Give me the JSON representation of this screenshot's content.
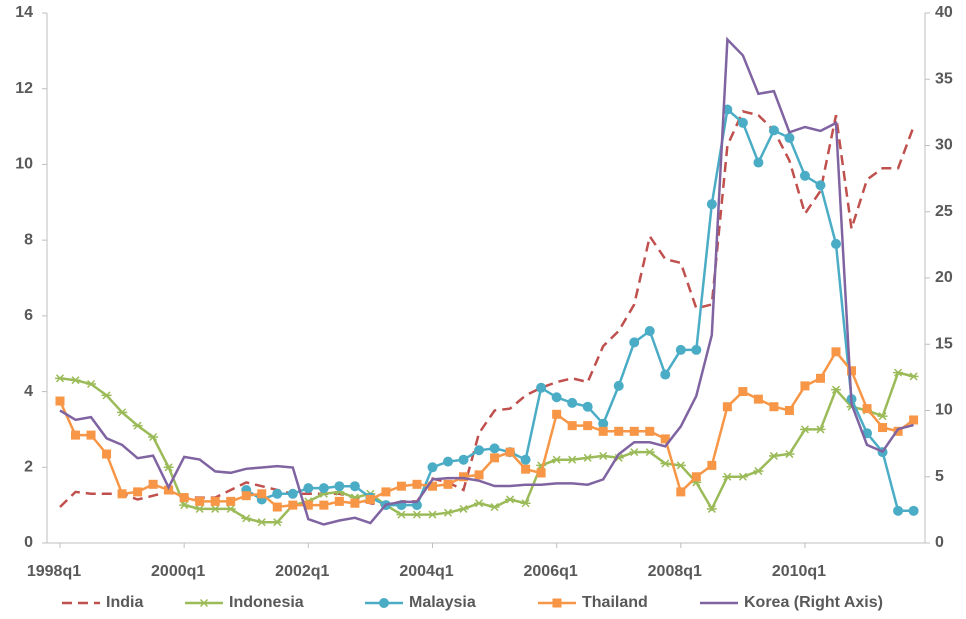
{
  "chart_data": {
    "type": "line",
    "categories": [
      "1998q1",
      null,
      null,
      null,
      null,
      null,
      null,
      null,
      "2000q1",
      null,
      null,
      null,
      null,
      null,
      null,
      null,
      "2002q1",
      null,
      null,
      null,
      null,
      null,
      null,
      null,
      "2004q1",
      null,
      null,
      null,
      null,
      null,
      null,
      null,
      "2006q1",
      null,
      null,
      null,
      null,
      null,
      null,
      null,
      "2008q1",
      null,
      null,
      null,
      null,
      null,
      null,
      null,
      "2010q1",
      null,
      null,
      null,
      null,
      null,
      null,
      null
    ],
    "series": [
      {
        "name": "India",
        "color": "#c0504d",
        "line_style": "dashed",
        "marker": "none",
        "values": [
          0.95,
          1.35,
          1.3,
          1.3,
          1.3,
          1.15,
          1.25,
          1.35,
          1.2,
          1.2,
          1.2,
          1.4,
          1.6,
          1.5,
          1.4,
          1.3,
          1.3,
          1.3,
          1.3,
          1.2,
          1.05,
          1.0,
          1.1,
          1.1,
          1.7,
          1.6,
          1.4,
          2.9,
          3.5,
          3.55,
          3.9,
          4.1,
          4.25,
          4.35,
          4.25,
          5.2,
          5.6,
          6.3,
          8.1,
          7.5,
          7.4,
          6.2,
          6.3,
          10.5,
          11.4,
          11.3,
          10.9,
          10.1,
          8.7,
          9.3,
          11.3,
          8.3,
          9.6,
          9.9,
          9.9,
          11.0
        ]
      },
      {
        "name": "Indonesia",
        "color": "#9bbb59",
        "line_style": "solid",
        "marker": "asterisk",
        "values": [
          4.35,
          4.3,
          4.2,
          3.9,
          3.45,
          3.1,
          2.8,
          2.0,
          1.0,
          0.9,
          0.9,
          0.9,
          0.65,
          0.55,
          0.55,
          1.0,
          1.1,
          1.3,
          1.35,
          1.2,
          1.3,
          1.0,
          0.75,
          0.75,
          0.75,
          0.8,
          0.9,
          1.05,
          0.95,
          1.15,
          1.05,
          2.05,
          2.2,
          2.2,
          2.25,
          2.3,
          2.25,
          2.4,
          2.4,
          2.1,
          2.05,
          1.6,
          0.9,
          1.75,
          1.75,
          1.9,
          2.3,
          2.35,
          3.0,
          3.0,
          4.05,
          3.6,
          3.5,
          3.35,
          4.5,
          4.4
        ]
      },
      {
        "name": "Malaysia",
        "color": "#4bacc6",
        "line_style": "solid",
        "marker": "circle",
        "values": [
          null,
          null,
          null,
          null,
          null,
          null,
          null,
          null,
          null,
          null,
          null,
          null,
          1.4,
          1.15,
          1.3,
          1.3,
          1.45,
          1.45,
          1.5,
          1.5,
          1.2,
          1.0,
          1.0,
          1.0,
          2.0,
          2.15,
          2.2,
          2.45,
          2.5,
          2.4,
          2.2,
          4.1,
          3.85,
          3.7,
          3.6,
          3.15,
          4.15,
          5.3,
          5.6,
          4.45,
          5.1,
          5.1,
          8.95,
          11.45,
          11.1,
          10.05,
          10.9,
          10.7,
          9.7,
          9.45,
          7.9,
          3.8,
          2.9,
          2.4,
          0.85,
          0.85
        ]
      },
      {
        "name": "Thailand",
        "color": "#f79646",
        "line_style": "solid",
        "marker": "square",
        "values": [
          3.75,
          2.85,
          2.85,
          2.35,
          1.3,
          1.35,
          1.55,
          1.4,
          1.2,
          1.1,
          1.1,
          1.1,
          1.25,
          1.3,
          0.95,
          1.0,
          1.0,
          1.0,
          1.1,
          1.05,
          1.15,
          1.35,
          1.5,
          1.55,
          1.5,
          1.55,
          1.75,
          1.8,
          2.25,
          2.4,
          1.95,
          1.85,
          3.4,
          3.1,
          3.1,
          2.95,
          2.95,
          2.95,
          2.95,
          2.75,
          1.35,
          1.75,
          2.05,
          3.6,
          4.0,
          3.8,
          3.6,
          3.5,
          4.15,
          4.35,
          5.05,
          4.55,
          3.55,
          3.05,
          2.95,
          3.25
        ]
      },
      {
        "name": "Korea (Right Axis)",
        "color": "#8064a2",
        "line_style": "solid",
        "marker": "none",
        "axis": "y2",
        "values": [
          10,
          9.3,
          9.5,
          7.9,
          7.4,
          6.4,
          6.6,
          4.2,
          6.5,
          6.3,
          5.4,
          5.3,
          5.6,
          5.7,
          5.8,
          5.7,
          1.8,
          1.4,
          1.7,
          1.9,
          1.5,
          2.9,
          3.1,
          3.1,
          4.8,
          4.9,
          4.9,
          4.7,
          4.3,
          4.3,
          4.4,
          4.4,
          4.5,
          4.5,
          4.4,
          4.8,
          6.7,
          7.6,
          7.6,
          7.3,
          8.8,
          11.1,
          15.7,
          38,
          36.8,
          33.9,
          34.1,
          31,
          31.4,
          31.1,
          31.7,
          10.5,
          7.4,
          6.9,
          8.6,
          8.9
        ]
      }
    ],
    "ylim": [
      0,
      14
    ],
    "yticks": [
      0,
      2,
      4,
      6,
      8,
      10,
      12,
      14
    ],
    "y2lim": [
      0,
      40
    ],
    "y2ticks": [
      0,
      5,
      10,
      15,
      20,
      25,
      30,
      35,
      40
    ],
    "grid": false,
    "legend": "bottom"
  }
}
